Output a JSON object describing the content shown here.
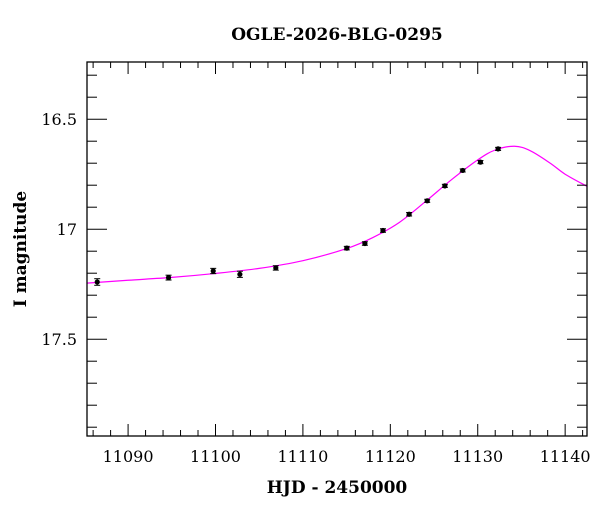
{
  "chart_data": {
    "type": "scatter",
    "title": "OGLE-2026-BLG-0295",
    "xlabel": "HJD - 2450000",
    "ylabel": "I magnitude",
    "xlim": [
      11085.3,
      11142.5
    ],
    "ylim": [
      16.24,
      17.94
    ],
    "y_inverted": true,
    "grid": false,
    "x_major_ticks": [
      11090,
      11100,
      11110,
      11120,
      11130,
      11140
    ],
    "x_tick_labels": [
      "11090",
      "11100",
      "11110",
      "11120",
      "11130",
      "11140"
    ],
    "x_minor_step": 2,
    "y_major_ticks": [
      16.5,
      17,
      17.5
    ],
    "y_tick_labels": [
      "16.5",
      "17",
      "17.5"
    ],
    "y_minor_step": 0.1,
    "series": [
      {
        "name": "data",
        "kind": "points-with-errorbars",
        "color": "#000000",
        "x": [
          11086.47,
          11094.63,
          11099.74,
          11102.79,
          11106.9,
          11115.02,
          11117.09,
          11119.16,
          11122.15,
          11124.22,
          11126.24,
          11128.28,
          11130.31,
          11132.33
        ],
        "y": [
          17.24,
          17.22,
          17.19,
          17.205,
          17.176,
          17.086,
          17.065,
          17.006,
          16.932,
          16.871,
          16.803,
          16.733,
          16.695,
          16.635
        ],
        "yerr": [
          0.015,
          0.011,
          0.012,
          0.014,
          0.01,
          0.008,
          0.008,
          0.008,
          0.008,
          0.007,
          0.007,
          0.007,
          0.007,
          0.007
        ]
      },
      {
        "name": "model",
        "kind": "line",
        "color": "#ff00ff",
        "x": [
          11085.3,
          11090,
          11095,
          11100,
          11105,
          11110,
          11115,
          11118,
          11121,
          11124,
          11127,
          11130,
          11132,
          11134.2,
          11136,
          11138.3,
          11140,
          11142.5
        ],
        "y": [
          17.245,
          17.232,
          17.219,
          17.201,
          17.178,
          17.143,
          17.088,
          17.038,
          16.97,
          16.875,
          16.775,
          16.685,
          16.64,
          16.623,
          16.643,
          16.7,
          16.75,
          16.805
        ]
      }
    ]
  }
}
